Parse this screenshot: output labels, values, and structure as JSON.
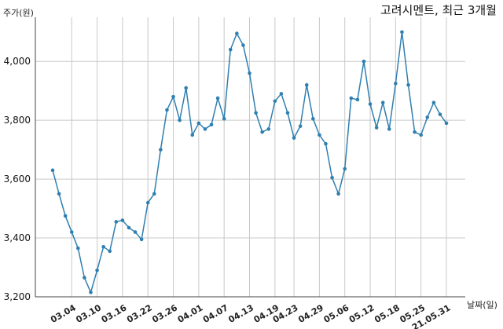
{
  "chart_data": {
    "type": "line",
    "title": "고려시멘트, 최근 3개월",
    "ylabel": "주가(원)",
    "xlabel": "날짜(일)",
    "ylim": [
      3200,
      4150
    ],
    "yticks": [
      3200,
      3400,
      3600,
      3800,
      4000
    ],
    "ytick_labels": [
      "3,200",
      "3,400",
      "3,600",
      "3,800",
      "4,000"
    ],
    "grid": true,
    "x_ticks": [
      {
        "index": 3,
        "label": "03.04"
      },
      {
        "index": 7,
        "label": "03.10"
      },
      {
        "index": 11,
        "label": "03.16"
      },
      {
        "index": 15,
        "label": "03.22"
      },
      {
        "index": 19,
        "label": "03.26"
      },
      {
        "index": 23,
        "label": "04.01"
      },
      {
        "index": 27,
        "label": "04.07"
      },
      {
        "index": 31,
        "label": "04.13"
      },
      {
        "index": 35,
        "label": "04.19"
      },
      {
        "index": 38,
        "label": "04.23"
      },
      {
        "index": 42,
        "label": "04.29"
      },
      {
        "index": 46,
        "label": "05.06"
      },
      {
        "index": 50,
        "label": "05.12"
      },
      {
        "index": 54,
        "label": "05.18"
      },
      {
        "index": 58,
        "label": "05.25"
      },
      {
        "index": 62,
        "label": "21.05.31"
      }
    ],
    "values": [
      3630,
      3550,
      3475,
      3420,
      3365,
      3265,
      3215,
      3290,
      3370,
      3355,
      3455,
      3460,
      3435,
      3420,
      3395,
      3520,
      3550,
      3700,
      3835,
      3880,
      3800,
      3910,
      3750,
      3790,
      3770,
      3785,
      3875,
      3805,
      4040,
      4095,
      4055,
      3960,
      3825,
      3760,
      3770,
      3865,
      3890,
      3825,
      3740,
      3780,
      3920,
      3805,
      3750,
      3720,
      3605,
      3550,
      3635,
      3875,
      3870,
      4000,
      3855,
      3775,
      3860,
      3770,
      3925,
      4100,
      3920,
      3760,
      3750,
      3810,
      3860,
      3820,
      3790
    ]
  }
}
